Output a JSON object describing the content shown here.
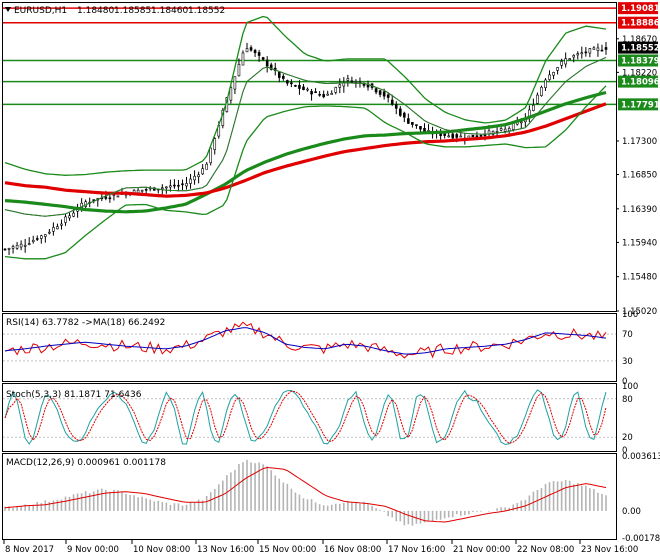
{
  "header": {
    "symbol": "EURUSD,H1",
    "open": "1.18480",
    "high": "1.18585",
    "low": "1.18460",
    "close": "1.18552"
  },
  "main_axis": {
    "ticks": [
      "1.18670",
      "1.18220",
      "1.17300",
      "1.16850",
      "1.16390",
      "1.15940",
      "1.15480",
      "1.15020"
    ]
  },
  "level_labels": [
    {
      "text": "1.19081",
      "color": "#e00000",
      "value": 1.19081
    },
    {
      "text": "1.18886",
      "color": "#e00000",
      "value": 1.18886
    },
    {
      "text": "1.18552",
      "color": "#000000",
      "value": 1.18552
    },
    {
      "text": "1.18379",
      "color": "#1a8a1a",
      "value": 1.18379
    },
    {
      "text": "1.18096",
      "color": "#1a8a1a",
      "value": 1.18096
    },
    {
      "text": "1.17791",
      "color": "#1a8a1a",
      "value": 1.17791
    }
  ],
  "rsi": {
    "label": "RSI(14) 63.7782 ->MA(18) 66.2492",
    "ticks": [
      "100",
      "70",
      "30",
      "0"
    ]
  },
  "stoch": {
    "label": "Stoch(5,3,3) 81.1871 71.6436",
    "ticks": [
      "100",
      "80",
      "20",
      "0"
    ]
  },
  "macd": {
    "label": "MACD(12,26,9) 0.000961 0.001178",
    "ticks": [
      "0.003613",
      "0.00",
      "-0.001786"
    ]
  },
  "x_axis": {
    "labels": [
      "8 Nov 2017",
      "9 Nov 00:00",
      "10 Nov 08:00",
      "13 Nov 16:00",
      "15 Nov 00:00",
      "16 Nov 08:00",
      "17 Nov 16:00",
      "21 Nov 00:00",
      "22 Nov 08:00",
      "23 Nov 16:00"
    ]
  },
  "colors": {
    "background": "#ffffff",
    "candle": "#000000",
    "bollinger": "#1a8a1a",
    "ma_fast": "#b000b0",
    "ma_green": "#1a8a1a",
    "ma_red": "#e00000",
    "rsi": "#e00000",
    "rsi_ma": "#0000c0",
    "stoch_main": "#20a0a0",
    "stoch_signal": "#e00000",
    "macd_hist": "#b4b4b4",
    "macd_signal": "#e00000"
  },
  "chart_data": {
    "type": "line",
    "title": "EURUSD,H1",
    "ylim": [
      1.1502,
      1.1915
    ],
    "x_labels": [
      "8 Nov 2017",
      "9 Nov 00:00",
      "10 Nov 08:00",
      "13 Nov 16:00",
      "15 Nov 00:00",
      "16 Nov 08:00",
      "17 Nov 16:00",
      "21 Nov 00:00",
      "22 Nov 08:00",
      "23 Nov 16:00"
    ],
    "horizontal_levels": [
      {
        "value": 1.19081,
        "color": "#e00000"
      },
      {
        "value": 1.18886,
        "color": "#e00000"
      },
      {
        "value": 1.18379,
        "color": "#1a8a1a"
      },
      {
        "value": 1.18096,
        "color": "#1a8a1a"
      },
      {
        "value": 1.17791,
        "color": "#1a8a1a"
      }
    ],
    "series": [
      {
        "values": [
          1.1585,
          1.1592,
          1.1605,
          1.1625,
          1.1648,
          1.1655,
          1.166,
          1.1665,
          1.1668,
          1.1672,
          1.1695,
          1.178,
          1.1858,
          1.1835,
          1.1808,
          1.1798,
          1.179,
          1.1812,
          1.1807,
          1.179,
          1.1758,
          1.1742,
          1.1738,
          1.1735,
          1.174,
          1.1745,
          1.176,
          1.1815,
          1.184,
          1.185,
          1.1855
        ]
      },
      {
        "values": [
          1.165,
          1.1648,
          1.1645,
          1.1642,
          1.1638,
          1.1636,
          1.1635,
          1.1636,
          1.164,
          1.1645,
          1.1658,
          1.1672,
          1.169,
          1.1702,
          1.1712,
          1.172,
          1.1727,
          1.1733,
          1.1737,
          1.1738,
          1.174,
          1.1741,
          1.1742,
          1.1745,
          1.1748,
          1.1752,
          1.176,
          1.177,
          1.178,
          1.1788,
          1.1795
        ]
      },
      {
        "values": [
          1.1674,
          1.167,
          1.1668,
          1.1664,
          1.1662,
          1.166,
          1.166,
          1.1658,
          1.1656,
          1.1657,
          1.166,
          1.1667,
          1.1677,
          1.1688,
          1.1696,
          1.1703,
          1.171,
          1.1716,
          1.172,
          1.1724,
          1.1727,
          1.1729,
          1.173,
          1.1732,
          1.1734,
          1.1737,
          1.1742,
          1.175,
          1.176,
          1.177,
          1.178
        ]
      },
      {
        "values": [
          1.1638,
          1.1632,
          1.1629,
          1.1632,
          1.1644,
          1.1656,
          1.1667,
          1.1668,
          1.1664,
          1.1663,
          1.1668,
          1.171,
          1.1808,
          1.183,
          1.182,
          1.1811,
          1.1807,
          1.1808,
          1.1807,
          1.1797,
          1.1778,
          1.1756,
          1.1745,
          1.174,
          1.1739,
          1.1742,
          1.1748,
          1.178,
          1.181,
          1.183,
          1.1842
        ]
      },
      {
        "values": [
          1.1701,
          1.1692,
          1.1686,
          1.1684,
          1.1685,
          1.1688,
          1.169,
          1.1691,
          1.1691,
          1.1691,
          1.1705,
          1.1775,
          1.1888,
          1.1898,
          1.187,
          1.1846,
          1.1837,
          1.184,
          1.184,
          1.184,
          1.1815,
          1.1786,
          1.1768,
          1.1758,
          1.1754,
          1.1758,
          1.1775,
          1.1838,
          1.1875,
          1.1884,
          1.188
        ]
      },
      {
        "values": [
          1.1575,
          1.1572,
          1.1572,
          1.158,
          1.1603,
          1.1624,
          1.1644,
          1.1645,
          1.1637,
          1.1635,
          1.1631,
          1.1645,
          1.1728,
          1.1762,
          1.177,
          1.1776,
          1.1777,
          1.1776,
          1.1774,
          1.1754,
          1.1741,
          1.1726,
          1.1722,
          1.1722,
          1.1724,
          1.1726,
          1.1721,
          1.1722,
          1.1745,
          1.1776,
          1.1804
        ]
      }
    ]
  }
}
